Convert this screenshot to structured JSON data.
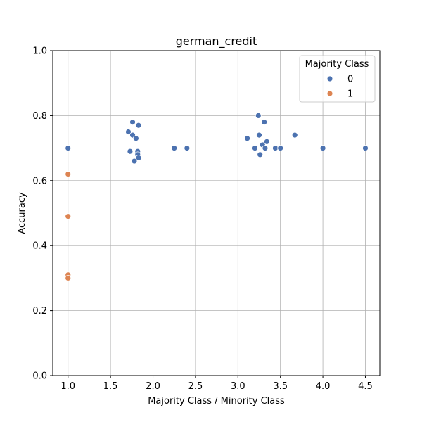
{
  "chart_data": {
    "type": "scatter",
    "title": "german_credit",
    "xlabel": "Majority Class / Minority Class",
    "ylabel": "Accuracy",
    "xlim": [
      0.82,
      4.67
    ],
    "ylim": [
      0.0,
      1.0
    ],
    "xticks": [
      1.0,
      1.5,
      2.0,
      2.5,
      3.0,
      3.5,
      4.0,
      4.5
    ],
    "xtick_labels": [
      "1.0",
      "1.5",
      "2.0",
      "2.5",
      "3.0",
      "3.5",
      "4.0",
      "4.5"
    ],
    "yticks": [
      0.0,
      0.2,
      0.4,
      0.6,
      0.8,
      1.0
    ],
    "ytick_labels": [
      "0.0",
      "0.2",
      "0.4",
      "0.6",
      "0.8",
      "1.0"
    ],
    "grid": true,
    "legend": {
      "title": "Majority Class",
      "placement": "top-right",
      "entries": [
        {
          "label": "0",
          "color": "#4c72b0"
        },
        {
          "label": "1",
          "color": "#dd8452"
        }
      ]
    },
    "series": [
      {
        "name": "0",
        "color": "#4c72b0",
        "points": [
          {
            "x": 1.0,
            "y": 0.7
          },
          {
            "x": 1.71,
            "y": 0.75
          },
          {
            "x": 1.76,
            "y": 0.78
          },
          {
            "x": 1.83,
            "y": 0.77
          },
          {
            "x": 1.76,
            "y": 0.74
          },
          {
            "x": 1.8,
            "y": 0.73
          },
          {
            "x": 1.73,
            "y": 0.69
          },
          {
            "x": 1.82,
            "y": 0.69
          },
          {
            "x": 1.82,
            "y": 0.68
          },
          {
            "x": 1.83,
            "y": 0.67
          },
          {
            "x": 1.78,
            "y": 0.66
          },
          {
            "x": 2.25,
            "y": 0.7
          },
          {
            "x": 2.4,
            "y": 0.7
          },
          {
            "x": 3.11,
            "y": 0.73
          },
          {
            "x": 3.2,
            "y": 0.7
          },
          {
            "x": 3.24,
            "y": 0.8
          },
          {
            "x": 3.25,
            "y": 0.74
          },
          {
            "x": 3.26,
            "y": 0.68
          },
          {
            "x": 3.29,
            "y": 0.71
          },
          {
            "x": 3.31,
            "y": 0.78
          },
          {
            "x": 3.32,
            "y": 0.7
          },
          {
            "x": 3.34,
            "y": 0.72
          },
          {
            "x": 3.44,
            "y": 0.7
          },
          {
            "x": 3.5,
            "y": 0.7
          },
          {
            "x": 3.67,
            "y": 0.74
          },
          {
            "x": 4.0,
            "y": 0.7
          },
          {
            "x": 4.5,
            "y": 0.7
          }
        ]
      },
      {
        "name": "1",
        "color": "#dd8452",
        "points": [
          {
            "x": 1.0,
            "y": 0.62
          },
          {
            "x": 1.0,
            "y": 0.49
          },
          {
            "x": 1.0,
            "y": 0.31
          },
          {
            "x": 1.0,
            "y": 0.3
          }
        ]
      }
    ]
  }
}
